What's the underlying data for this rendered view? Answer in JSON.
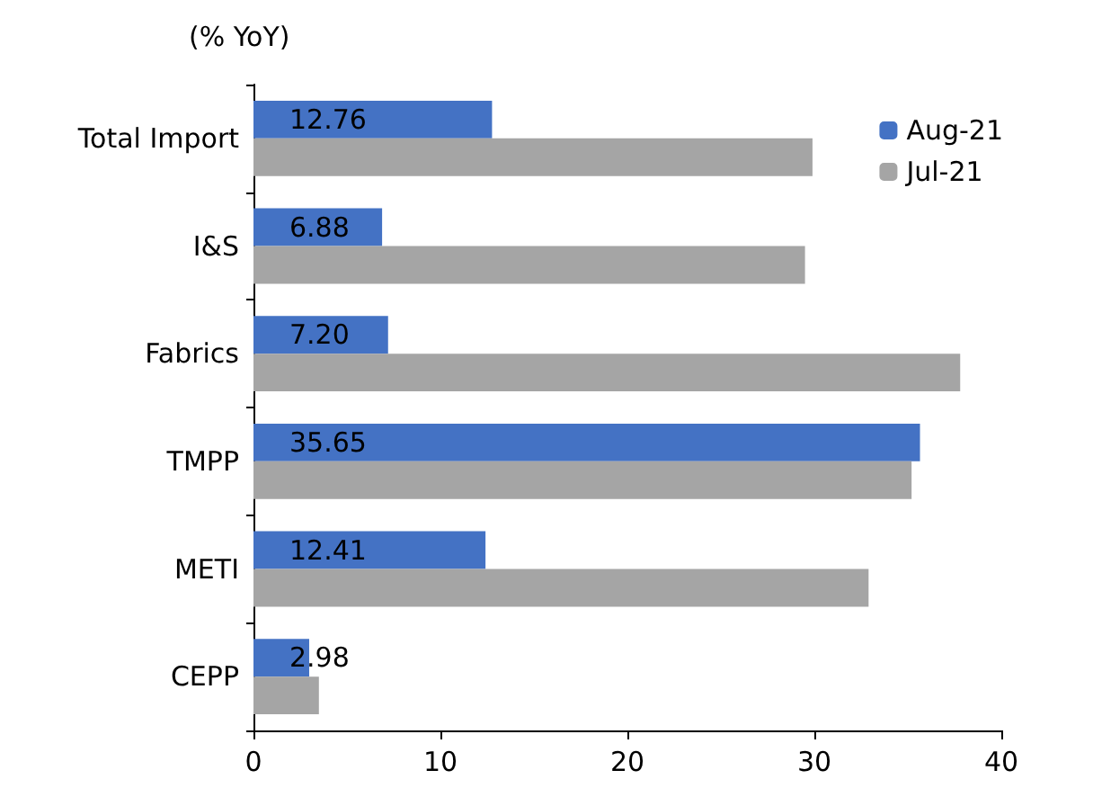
{
  "chart_data": {
    "type": "bar",
    "orientation": "horizontal",
    "ylabel": "(% YoY)",
    "categories": [
      "Total Import",
      "I&S",
      "Fabrics",
      "TMPP",
      "METI",
      "CEPP"
    ],
    "series": [
      {
        "name": "Aug-21",
        "color": "#4472c4",
        "values": [
          12.76,
          6.88,
          7.2,
          35.65,
          12.41,
          2.98
        ],
        "value_labels": [
          "12.76",
          "6.88",
          "7.20",
          "35.65",
          "12.41",
          "2.98"
        ]
      },
      {
        "name": "Jul-21",
        "color": "#a5a5a5",
        "values": [
          29.9,
          29.5,
          37.8,
          35.2,
          32.9,
          3.5
        ]
      }
    ],
    "xlim": [
      0,
      40
    ],
    "xticks": [
      0,
      10,
      20,
      30,
      40
    ],
    "grid": false,
    "legend": "top right"
  }
}
